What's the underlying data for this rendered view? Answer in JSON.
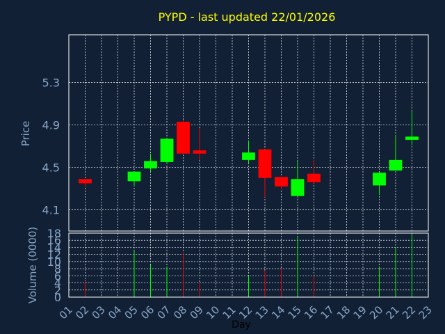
{
  "chart_data": {
    "type": "candlestick",
    "title": "PYPD - last updated 22/01/2026",
    "colors": {
      "background": "#112035",
      "title": "#ffff00",
      "axis_text": "#8aa8c8",
      "frame": "#ffffff",
      "grid": "#ffffff",
      "up": "#00ff00",
      "down": "#ff0000"
    },
    "price_panel": {
      "ylabel": "Price",
      "ylim": [
        3.9,
        5.75
      ],
      "yticks": [
        4.1,
        4.5,
        4.9,
        5.3
      ],
      "ytick_labels": [
        "4.1",
        "4.5",
        "4.9",
        "5.3"
      ],
      "grid": true
    },
    "volume_panel": {
      "ylabel": "Volume (0000)",
      "ylim": [
        0,
        18
      ],
      "yticks": [
        0,
        2,
        4,
        6,
        8,
        10,
        12,
        14,
        16,
        18
      ],
      "ytick_labels": [
        "0",
        "2",
        "4",
        "6",
        "8",
        "10",
        "12",
        "14",
        "16",
        "18"
      ],
      "grid": true
    },
    "xlabel": "Day",
    "xlim": [
      1,
      23
    ],
    "xticks": [
      1,
      2,
      3,
      4,
      5,
      6,
      7,
      8,
      9,
      10,
      11,
      12,
      13,
      14,
      15,
      16,
      17,
      18,
      19,
      20,
      21,
      22,
      23
    ],
    "xtick_labels": [
      "01",
      "02",
      "03",
      "04",
      "05",
      "06",
      "07",
      "08",
      "09",
      "10",
      "11",
      "12",
      "13",
      "14",
      "15",
      "16",
      "17",
      "18",
      "19",
      "20",
      "21",
      "22",
      "23"
    ],
    "candles": [
      {
        "day": 2,
        "open": 4.39,
        "close": 4.35,
        "high": 4.39,
        "low": 4.31,
        "volume": 4.5
      },
      {
        "day": 5,
        "open": 4.37,
        "close": 4.46,
        "high": 4.46,
        "low": 4.32,
        "volume": 13
      },
      {
        "day": 6,
        "open": 4.49,
        "close": 4.56,
        "high": 4.63,
        "low": 4.46,
        "volume": 9
      },
      {
        "day": 7,
        "open": 4.55,
        "close": 4.77,
        "high": 4.77,
        "low": 4.53,
        "volume": 8.5
      },
      {
        "day": 8,
        "open": 4.93,
        "close": 4.63,
        "high": 4.95,
        "low": 4.63,
        "volume": 12.5
      },
      {
        "day": 9,
        "open": 4.66,
        "close": 4.63,
        "high": 4.87,
        "low": 4.57,
        "volume": 4
      },
      {
        "day": 12,
        "open": 4.57,
        "close": 4.64,
        "high": 4.75,
        "low": 4.54,
        "volume": 6
      },
      {
        "day": 13,
        "open": 4.67,
        "close": 4.4,
        "high": 4.67,
        "low": 4.22,
        "volume": 7.5
      },
      {
        "day": 14,
        "open": 4.41,
        "close": 4.32,
        "high": 4.41,
        "low": 4.29,
        "volume": 8
      },
      {
        "day": 15,
        "open": 4.23,
        "close": 4.39,
        "high": 4.56,
        "low": 4.23,
        "volume": 17
      },
      {
        "day": 16,
        "open": 4.44,
        "close": 4.36,
        "high": 4.57,
        "low": 4.35,
        "volume": 6
      },
      {
        "day": 20,
        "open": 4.33,
        "close": 4.45,
        "high": 4.45,
        "low": 4.24,
        "volume": 8.5
      },
      {
        "day": 21,
        "open": 4.47,
        "close": 4.57,
        "high": 4.8,
        "low": 4.47,
        "volume": 14
      },
      {
        "day": 22,
        "open": 4.76,
        "close": 4.79,
        "high": 5.03,
        "low": 4.71,
        "volume": 17.5
      }
    ]
  }
}
